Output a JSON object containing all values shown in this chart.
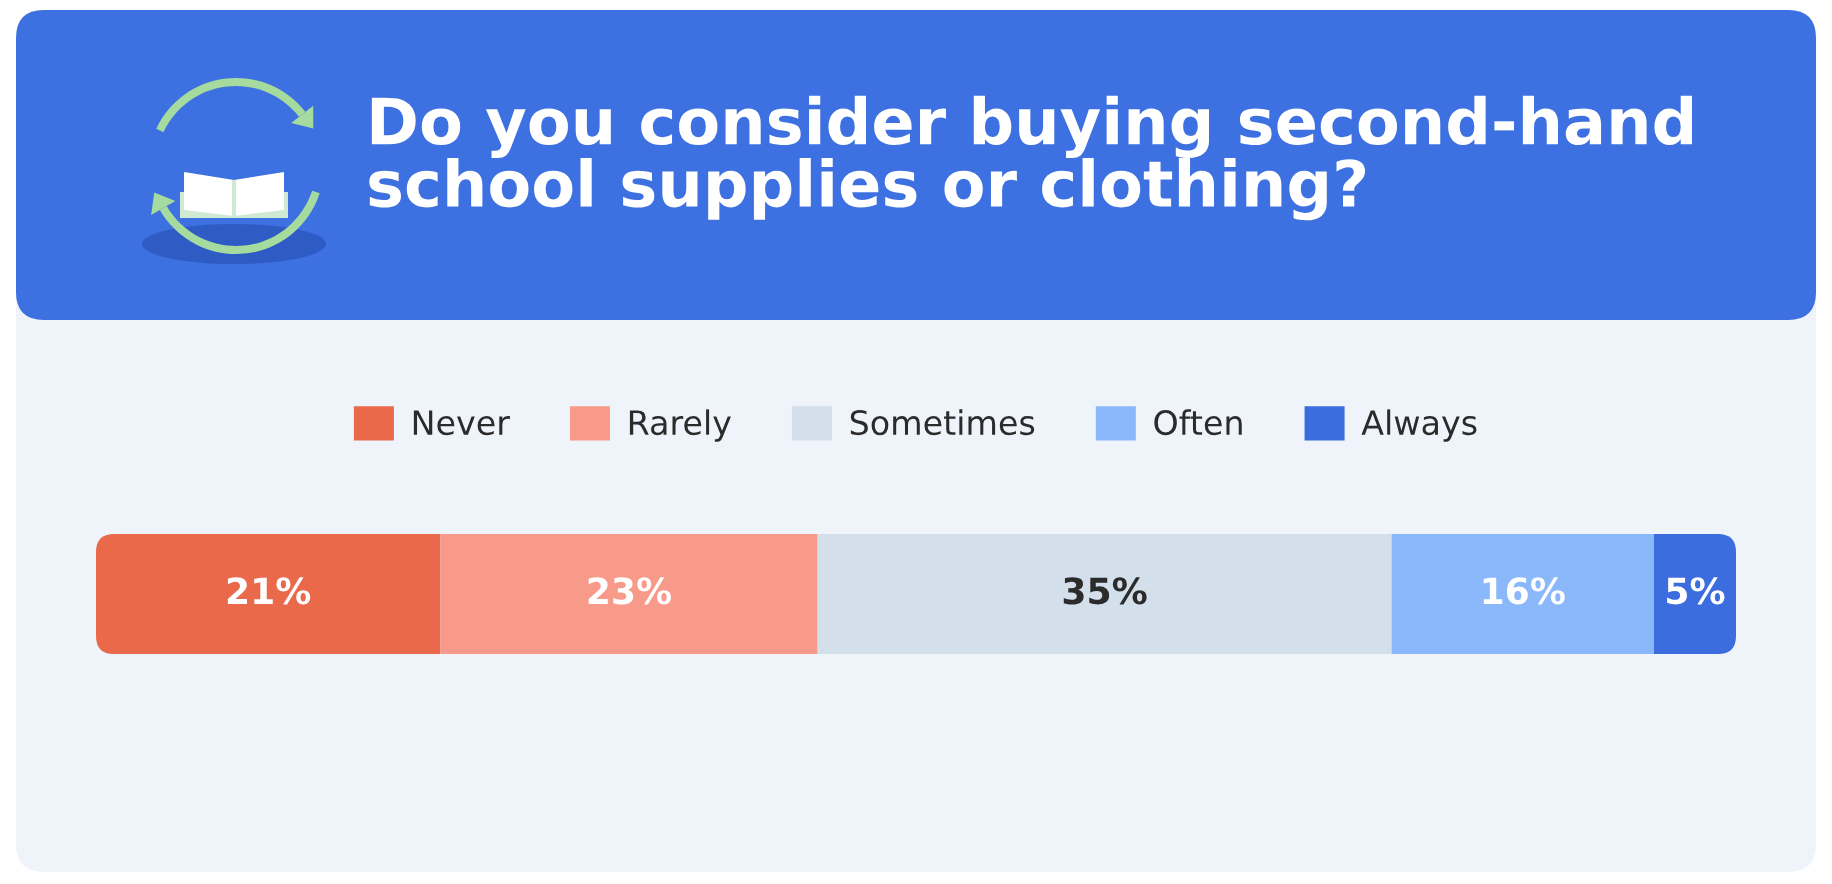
{
  "chart_data": {
    "type": "bar",
    "orientation": "horizontal",
    "stacked": true,
    "title": "Do you consider buying second-hand\nschool supplies or clothing?",
    "categories": [
      null
    ],
    "series": [
      {
        "name": "Never",
        "color": "#e9694a",
        "values": [
          21
        ],
        "value_labels": [
          "21%"
        ]
      },
      {
        "name": "Rarely",
        "color": "#f89a8a",
        "values": [
          23
        ],
        "value_labels": [
          "23%"
        ]
      },
      {
        "name": "Sometimes",
        "color": "#d3dfea",
        "values": [
          35
        ],
        "value_labels": [
          "35%"
        ]
      },
      {
        "name": "Often",
        "color": "#8ab8fa",
        "values": [
          16
        ],
        "value_labels": [
          "16%"
        ]
      },
      {
        "name": "Always",
        "color": "#3b6ddf",
        "values": [
          5
        ],
        "value_labels": [
          "5%"
        ]
      }
    ],
    "tick_labels": false,
    "legend": "top"
  }
}
